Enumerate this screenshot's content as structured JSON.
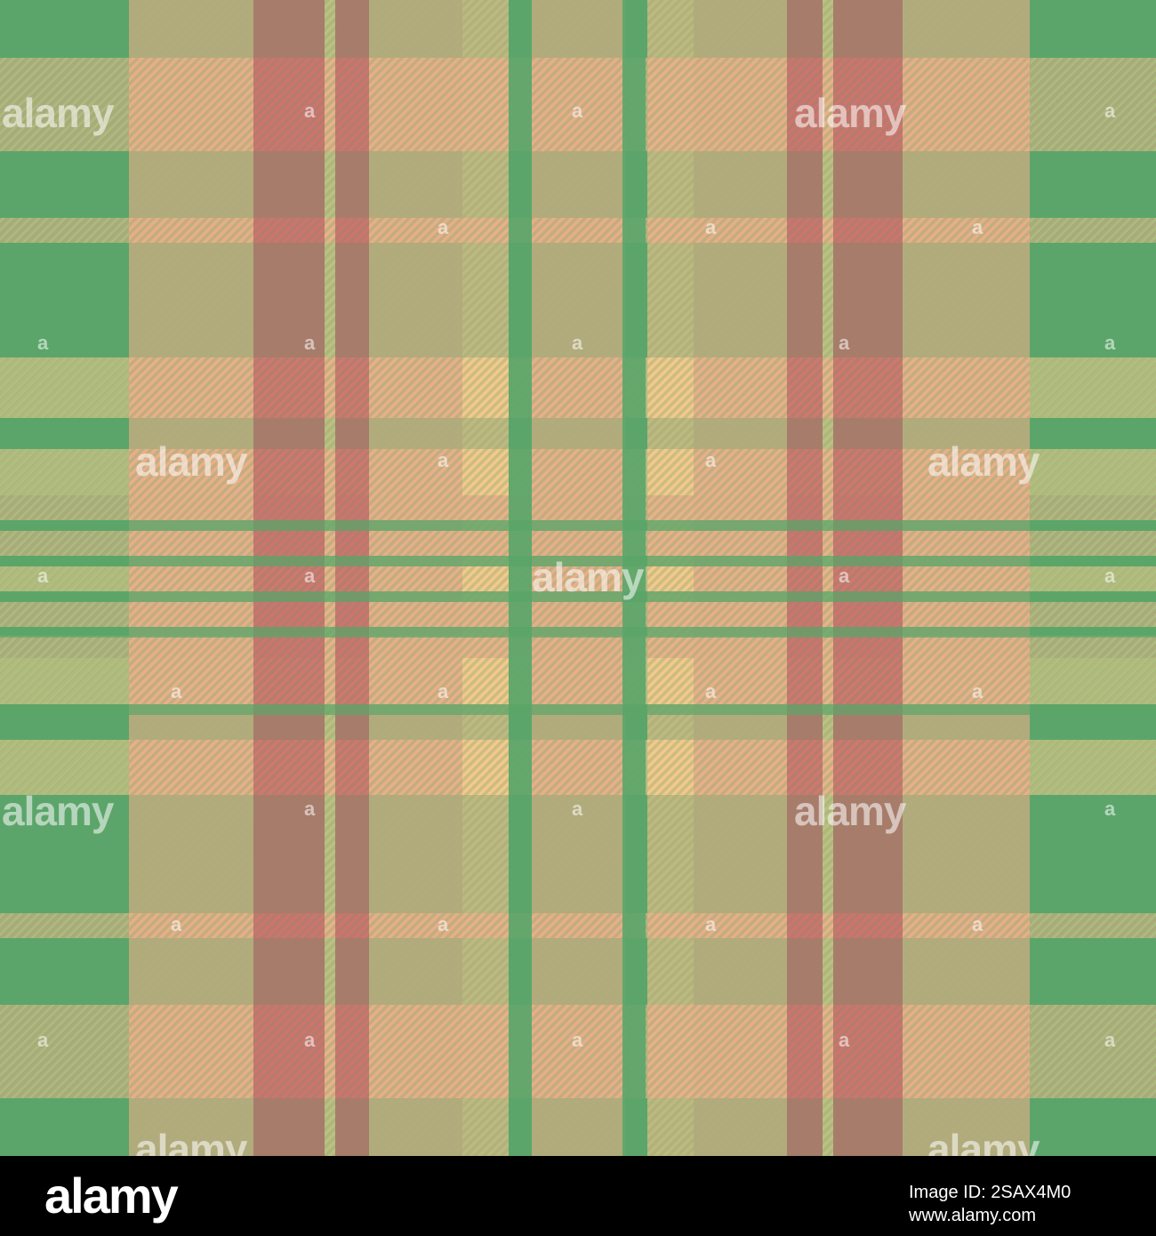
{
  "colors": {
    "green": "#5ca56a",
    "salmon": "#ebaf88",
    "peach": "#f8c98c",
    "red": "#d9606a",
    "light_yellow": "#f0d98f",
    "footer_bg": "#000000"
  },
  "watermark": {
    "text": "alamy",
    "small_text": "a"
  },
  "footer": {
    "logo": "alamy",
    "image_id": "Image ID: 2SAX4M0",
    "site": "www.alamy.com"
  }
}
